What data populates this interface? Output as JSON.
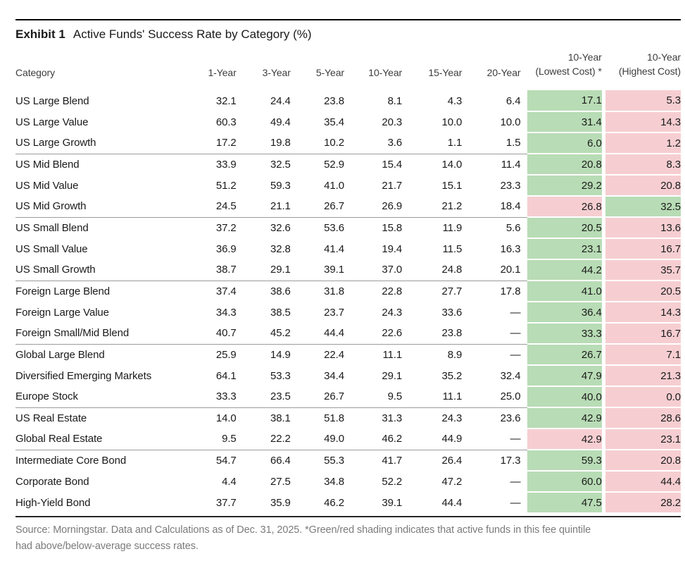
{
  "page": {
    "exhibit_label": "Exhibit 1",
    "exhibit_title": "Active Funds' Success Rate by Category (%)"
  },
  "colors": {
    "shade_green": "#b8dcb5",
    "shade_red": "#f6ced1",
    "group_line": "#9b9b9b",
    "top_rule": "#000000",
    "footer_text": "#7b7b7b"
  },
  "footer": {
    "lines": [
      "Source: Morningstar. Data and Calculations as of Dec. 31, 2025. *Green/red shading indicates that active funds in this fee quintile",
      "had above/below-average success rates."
    ]
  },
  "chart_data": {
    "type": "table",
    "title": "Active Funds' Success Rate by Category (%)",
    "columns": [
      "Category",
      "1-Year",
      "3-Year",
      "5-Year",
      "10-Year",
      "15-Year",
      "20-Year",
      "10-Year (Lowest Cost) *",
      "10-Year (Highest Cost)"
    ],
    "header_labels": {
      "category": "Category",
      "y1": "1-Year",
      "y3": "3-Year",
      "y5": "5-Year",
      "y10": "10-Year",
      "y15": "15-Year",
      "y20": "20-Year",
      "lowest_line1": "10-Year",
      "lowest_line2": "(Lowest Cost) *",
      "highest_line1": "10-Year",
      "highest_line2": "(Highest Cost)"
    },
    "shading_legend": "Green/red shading indicates that active funds in this fee quintile had above/below-average success rates.",
    "rows": [
      {
        "group": 1,
        "category": "US Large Blend",
        "values": [
          "32.1",
          "24.4",
          "23.8",
          "8.1",
          "4.3",
          "6.4"
        ],
        "lowest": "17.1",
        "lowest_shade": "green",
        "highest": "5.3",
        "highest_shade": "red"
      },
      {
        "group": 1,
        "category": "US Large Value",
        "values": [
          "60.3",
          "49.4",
          "35.4",
          "20.3",
          "10.0",
          "10.0"
        ],
        "lowest": "31.4",
        "lowest_shade": "green",
        "highest": "14.3",
        "highest_shade": "red"
      },
      {
        "group": 1,
        "category": "US Large Growth",
        "values": [
          "17.2",
          "19.8",
          "10.2",
          "3.6",
          "1.1",
          "1.5"
        ],
        "lowest": "6.0",
        "lowest_shade": "green",
        "highest": "1.2",
        "highest_shade": "red"
      },
      {
        "group": 2,
        "category": "US Mid Blend",
        "values": [
          "33.9",
          "32.5",
          "52.9",
          "15.4",
          "14.0",
          "11.4"
        ],
        "lowest": "20.8",
        "lowest_shade": "green",
        "highest": "8.3",
        "highest_shade": "red"
      },
      {
        "group": 2,
        "category": "US Mid Value",
        "values": [
          "51.2",
          "59.3",
          "41.0",
          "21.7",
          "15.1",
          "23.3"
        ],
        "lowest": "29.2",
        "lowest_shade": "green",
        "highest": "20.8",
        "highest_shade": "red"
      },
      {
        "group": 2,
        "category": "US Mid Growth",
        "values": [
          "24.5",
          "21.1",
          "26.7",
          "26.9",
          "21.2",
          "18.4"
        ],
        "lowest": "26.8",
        "lowest_shade": "red",
        "highest": "32.5",
        "highest_shade": "green"
      },
      {
        "group": 3,
        "category": "US Small Blend",
        "values": [
          "37.2",
          "32.6",
          "53.6",
          "15.8",
          "11.9",
          "5.6"
        ],
        "lowest": "20.5",
        "lowest_shade": "green",
        "highest": "13.6",
        "highest_shade": "red"
      },
      {
        "group": 3,
        "category": "US Small Value",
        "values": [
          "36.9",
          "32.8",
          "41.4",
          "19.4",
          "11.5",
          "16.3"
        ],
        "lowest": "23.1",
        "lowest_shade": "green",
        "highest": "16.7",
        "highest_shade": "red"
      },
      {
        "group": 3,
        "category": "US Small Growth",
        "values": [
          "38.7",
          "29.1",
          "39.1",
          "37.0",
          "24.8",
          "20.1"
        ],
        "lowest": "44.2",
        "lowest_shade": "green",
        "highest": "35.7",
        "highest_shade": "red"
      },
      {
        "group": 4,
        "category": "Foreign Large Blend",
        "values": [
          "37.4",
          "38.6",
          "31.8",
          "22.8",
          "27.7",
          "17.8"
        ],
        "lowest": "41.0",
        "lowest_shade": "green",
        "highest": "20.5",
        "highest_shade": "red"
      },
      {
        "group": 4,
        "category": "Foreign Large Value",
        "values": [
          "34.3",
          "38.5",
          "23.7",
          "24.3",
          "33.6",
          "—"
        ],
        "lowest": "36.4",
        "lowest_shade": "green",
        "highest": "14.3",
        "highest_shade": "red"
      },
      {
        "group": 4,
        "category": "Foreign Small/Mid Blend",
        "values": [
          "40.7",
          "45.2",
          "44.4",
          "22.6",
          "23.8",
          "—"
        ],
        "lowest": "33.3",
        "lowest_shade": "green",
        "highest": "16.7",
        "highest_shade": "red"
      },
      {
        "group": 5,
        "category": "Global Large Blend",
        "values": [
          "25.9",
          "14.9",
          "22.4",
          "11.1",
          "8.9",
          "—"
        ],
        "lowest": "26.7",
        "lowest_shade": "green",
        "highest": "7.1",
        "highest_shade": "red"
      },
      {
        "group": 5,
        "category": "Diversified Emerging Markets",
        "values": [
          "64.1",
          "53.3",
          "34.4",
          "29.1",
          "35.2",
          "32.4"
        ],
        "lowest": "47.9",
        "lowest_shade": "green",
        "highest": "21.3",
        "highest_shade": "red"
      },
      {
        "group": 5,
        "category": "Europe Stock",
        "values": [
          "33.3",
          "23.5",
          "26.7",
          "9.5",
          "11.1",
          "25.0"
        ],
        "lowest": "40.0",
        "lowest_shade": "green",
        "highest": "0.0",
        "highest_shade": "red"
      },
      {
        "group": 6,
        "category": "US Real Estate",
        "values": [
          "14.0",
          "38.1",
          "51.8",
          "31.3",
          "24.3",
          "23.6"
        ],
        "lowest": "42.9",
        "lowest_shade": "green",
        "highest": "28.6",
        "highest_shade": "red"
      },
      {
        "group": 6,
        "category": "Global Real Estate",
        "values": [
          "9.5",
          "22.2",
          "49.0",
          "46.2",
          "44.9",
          "—"
        ],
        "lowest": "42.9",
        "lowest_shade": "red",
        "highest": "23.1",
        "highest_shade": "red"
      },
      {
        "group": 7,
        "category": "Intermediate Core Bond",
        "values": [
          "54.7",
          "66.4",
          "55.3",
          "41.7",
          "26.4",
          "17.3"
        ],
        "lowest": "59.3",
        "lowest_shade": "green",
        "highest": "20.8",
        "highest_shade": "red"
      },
      {
        "group": 7,
        "category": "Corporate Bond",
        "values": [
          "4.4",
          "27.5",
          "34.8",
          "52.2",
          "47.2",
          "—"
        ],
        "lowest": "60.0",
        "lowest_shade": "green",
        "highest": "44.4",
        "highest_shade": "red"
      },
      {
        "group": 7,
        "category": "High-Yield Bond",
        "values": [
          "37.7",
          "35.9",
          "46.2",
          "39.1",
          "44.4",
          "—"
        ],
        "lowest": "47.5",
        "lowest_shade": "green",
        "highest": "28.2",
        "highest_shade": "red"
      }
    ]
  }
}
